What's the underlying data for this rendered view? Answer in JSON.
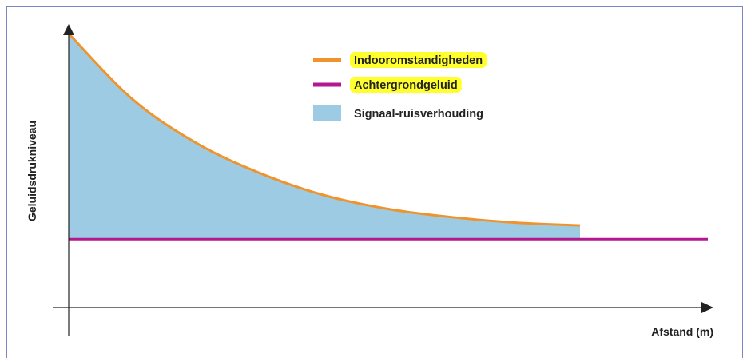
{
  "chart_data": {
    "type": "area",
    "title": "",
    "xlabel": "Afstand (m)",
    "ylabel": "Geluidsdrukniveau",
    "xlim": [
      0,
      10
    ],
    "ylim": [
      0,
      10
    ],
    "grid": false,
    "legend_position": "top-center",
    "series": [
      {
        "name": "Indooromstandigheden",
        "type": "line",
        "color": "#f0932b",
        "x": [
          0,
          1,
          2,
          3,
          4,
          5,
          6,
          7,
          8
        ],
        "y": [
          10,
          7.6,
          6.0,
          4.9,
          4.1,
          3.6,
          3.3,
          3.1,
          3.0
        ]
      },
      {
        "name": "Achtergrondgeluid",
        "type": "line",
        "color": "#b5178f",
        "x": [
          0,
          10
        ],
        "y": [
          2.5,
          2.5
        ]
      },
      {
        "name": "Signaal-ruisverhouding",
        "type": "area",
        "color": "#9ccbe3",
        "between": [
          "Indooromstandigheden",
          "Achtergrondgeluid"
        ],
        "x": [
          0,
          8
        ]
      }
    ],
    "legend": [
      {
        "label": "Indooromstandigheden",
        "color": "#f0932b",
        "marker": "line",
        "highlight": "#ffff2e"
      },
      {
        "label": "Achtergrondgeluid",
        "color": "#b5178f",
        "marker": "line",
        "highlight": "#ffff2e"
      },
      {
        "label": "Signaal-ruisverhouding",
        "color": "#9ccbe3",
        "marker": "box",
        "highlight": ""
      }
    ]
  }
}
